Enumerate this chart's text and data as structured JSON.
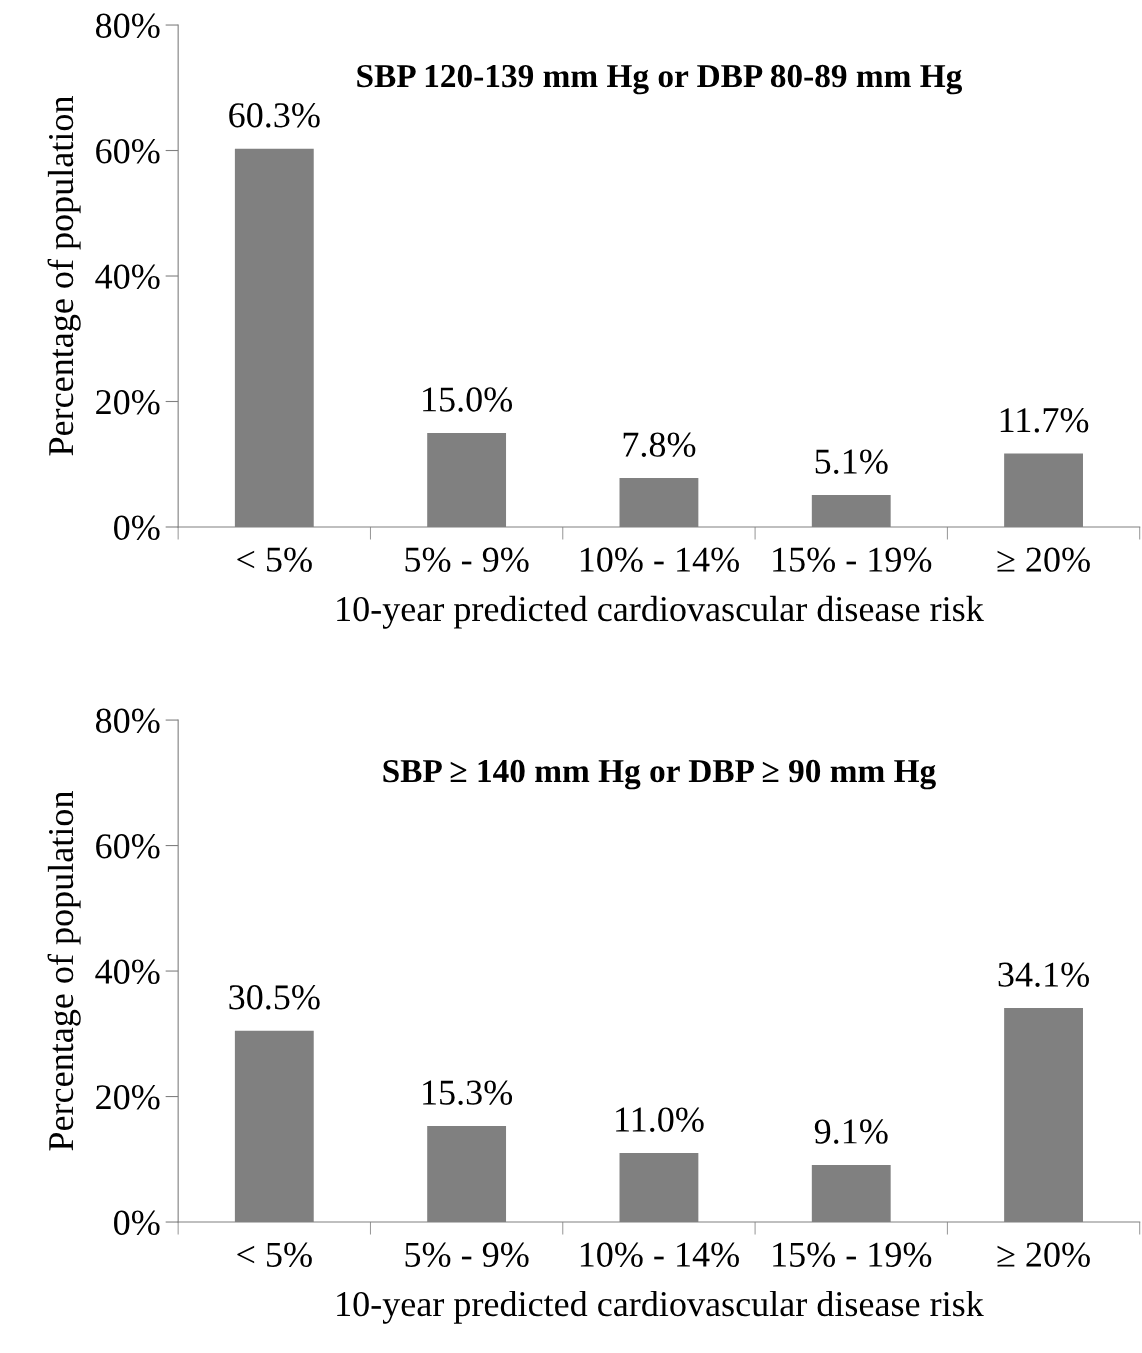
{
  "chart_data": [
    {
      "type": "bar",
      "title": "SBP 120-139 mm Hg or DBP 80-89 mm Hg",
      "xlabel": "10-year predicted cardiovascular disease risk",
      "ylabel": "Percentage of population",
      "categories": [
        "< 5%",
        "5% - 9%",
        "10% - 14%",
        "15% - 19%",
        "≥ 20%"
      ],
      "values": [
        60.3,
        15.0,
        7.8,
        5.1,
        11.7
      ],
      "value_labels": [
        "60.3%",
        "15.0%",
        "7.8%",
        "5.1%",
        "11.7%"
      ],
      "color": "#808080",
      "ylim": [
        0,
        80
      ],
      "yticks": [
        {
          "value": 0,
          "label": "0%"
        },
        {
          "value": 20,
          "label": "20%"
        },
        {
          "value": 40,
          "label": "40%"
        },
        {
          "value": 60,
          "label": "60%"
        },
        {
          "value": 80,
          "label": "80%"
        }
      ],
      "grid": false,
      "legend": false
    },
    {
      "type": "bar",
      "title": "SBP ≥ 140 mm Hg or DBP ≥ 90 mm Hg",
      "xlabel": "10-year predicted cardiovascular disease risk",
      "ylabel": "Percentage of population",
      "categories": [
        "< 5%",
        "5% - 9%",
        "10% - 14%",
        "15% - 19%",
        "≥ 20%"
      ],
      "values": [
        30.5,
        15.3,
        11.0,
        9.1,
        34.1
      ],
      "value_labels": [
        "30.5%",
        "15.3%",
        "11.0%",
        "9.1%",
        "34.1%"
      ],
      "color": "#808080",
      "ylim": [
        0,
        80
      ],
      "yticks": [
        {
          "value": 0,
          "label": "0%"
        },
        {
          "value": 20,
          "label": "20%"
        },
        {
          "value": 40,
          "label": "40%"
        },
        {
          "value": 60,
          "label": "60%"
        },
        {
          "value": 80,
          "label": "80%"
        }
      ],
      "grid": false,
      "legend": false
    }
  ]
}
